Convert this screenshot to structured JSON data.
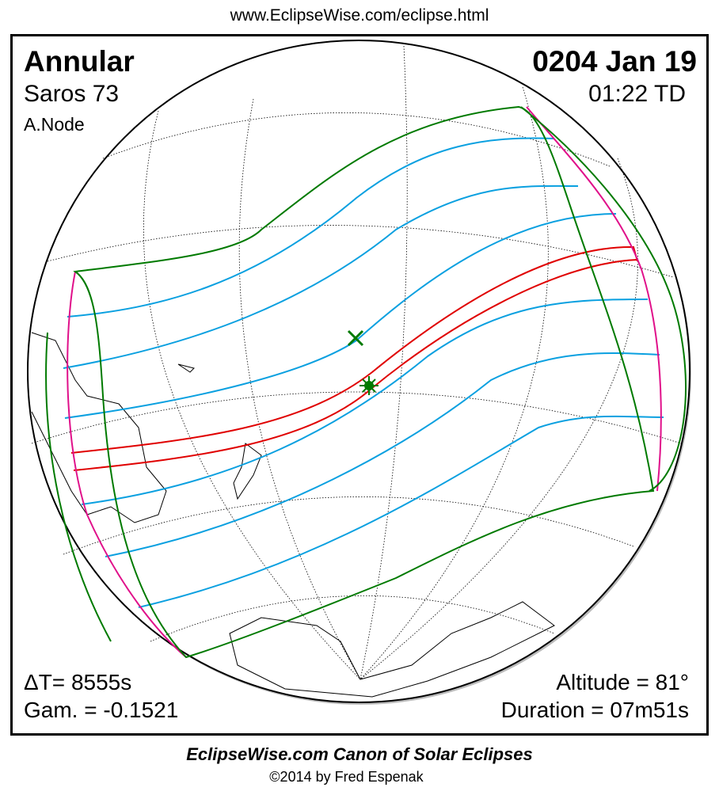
{
  "header": {
    "url": "www.EclipseWise.com/eclipse.html"
  },
  "eclipse": {
    "type": "Annular",
    "date": "0204 Jan 19",
    "saros": "Saros  73",
    "time": "01:22 TD",
    "node": "A.Node",
    "delta_t": "ΔT=   8555s",
    "gamma": "Gam. = -0.1521",
    "altitude": "Altitude = 81°",
    "duration": "Duration = 07m51s"
  },
  "footer": {
    "canon": "EclipseWise.com Canon of Solar Eclipses",
    "copyright": "©2014 by Fred Espenak"
  },
  "colors": {
    "central_path": "#e00000",
    "penumbral_limits": "#0aa0e0",
    "outer_limits": "#007a00",
    "rise_set": "#e0108a"
  }
}
